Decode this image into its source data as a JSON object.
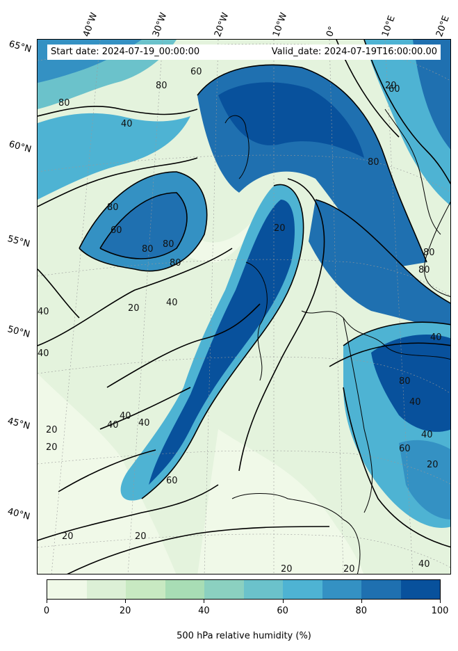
{
  "header": {
    "start_label": "Start date: 2024-07-19_00:00:00",
    "valid_label": "Valid_date: 2024-07-19T16:00:00.00"
  },
  "latitude_labels": [
    "65°N",
    "60°N",
    "55°N",
    "50°N",
    "45°N",
    "40°N"
  ],
  "longitude_labels": [
    "40°W",
    "30°W",
    "20°W",
    "10°W",
    "0°",
    "10°E",
    "20°E"
  ],
  "contour_labels": [
    "80",
    "60",
    "40",
    "80",
    "80",
    "60",
    "80",
    "80",
    "80",
    "20",
    "40",
    "20",
    "40",
    "40",
    "40",
    "20",
    "20",
    "20",
    "20",
    "60",
    "20",
    "20",
    "60",
    "80",
    "40",
    "40",
    "40",
    "40",
    "60",
    "20",
    "20",
    "40",
    "80",
    "80",
    "80",
    "40"
  ],
  "colorbar": {
    "title": "500 hPa relative humidity (%)",
    "tick_labels": [
      "0",
      "20",
      "40",
      "60",
      "80",
      "100"
    ],
    "colors": [
      "#f0f9e8",
      "#dcf0d6",
      "#c8e9c2",
      "#a8ddb5",
      "#8bd0c0",
      "#6bc2cb",
      "#4eb3d3",
      "#3491c3",
      "#1f70b0",
      "#08519c"
    ]
  }
}
